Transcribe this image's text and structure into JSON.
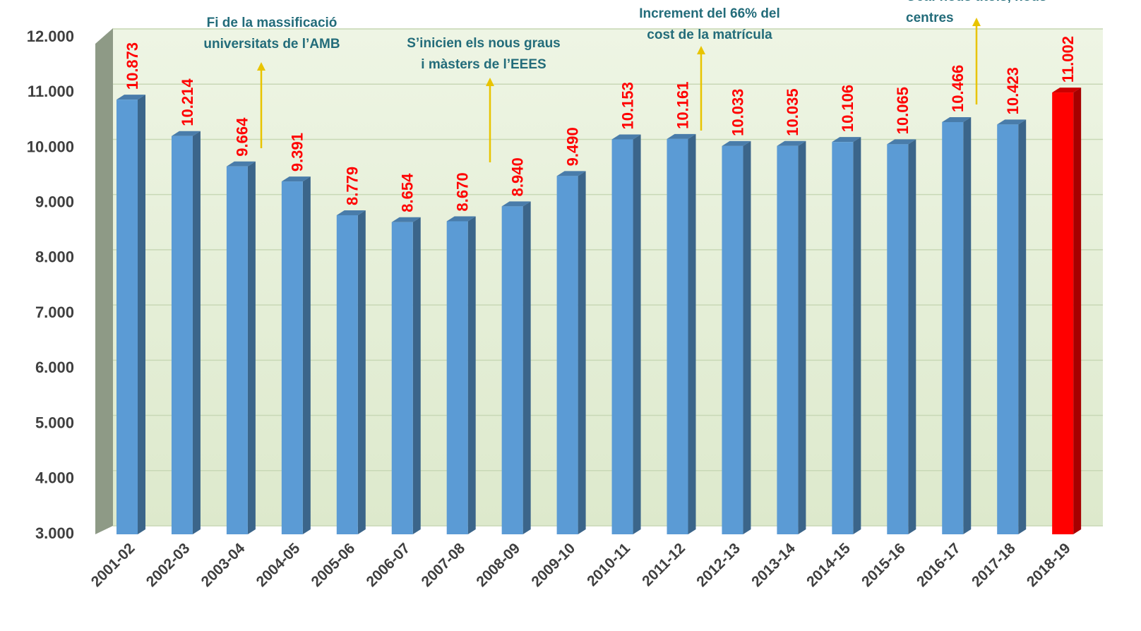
{
  "chart_data": {
    "type": "bar3d",
    "categories": [
      "2001-02",
      "2002-03",
      "2003-04",
      "2004-05",
      "2005-06",
      "2006-07",
      "2007-08",
      "2008-09",
      "2009-10",
      "2010-11",
      "2011-12",
      "2012-13",
      "2013-14",
      "2014-15",
      "2015-16",
      "2016-17",
      "2017-18",
      "2018-19"
    ],
    "values": [
      10873,
      10214,
      9664,
      9391,
      8779,
      8654,
      8670,
      8940,
      9490,
      10153,
      10161,
      10033,
      10035,
      10106,
      10065,
      10466,
      10423,
      11002
    ],
    "value_labels": [
      "10.873",
      "10.214",
      "9.664",
      "9.391",
      "8.779",
      "8.654",
      "8.670",
      "8.940",
      "9.490",
      "10.153",
      "10.161",
      "10.033",
      "10.035",
      "10.106",
      "10.065",
      "10.466",
      "10.423",
      "11.002"
    ],
    "colors": [
      "#5b9bd5",
      "#5b9bd5",
      "#5b9bd5",
      "#5b9bd5",
      "#5b9bd5",
      "#5b9bd5",
      "#5b9bd5",
      "#5b9bd5",
      "#5b9bd5",
      "#5b9bd5",
      "#5b9bd5",
      "#5b9bd5",
      "#5b9bd5",
      "#5b9bd5",
      "#5b9bd5",
      "#5b9bd5",
      "#5b9bd5",
      "#ff0000"
    ],
    "ylim": [
      3000,
      12000
    ],
    "yticks": [
      {
        "value": 3000,
        "label": "3.000"
      },
      {
        "value": 4000,
        "label": "4.000"
      },
      {
        "value": 5000,
        "label": "5.000"
      },
      {
        "value": 6000,
        "label": "6.000"
      },
      {
        "value": 7000,
        "label": "7.000"
      },
      {
        "value": 8000,
        "label": "8.000"
      },
      {
        "value": 9000,
        "label": "9.000"
      },
      {
        "value": 10000,
        "label": "10.000"
      },
      {
        "value": 11000,
        "label": "11.000"
      },
      {
        "value": 12000,
        "label": "12.000"
      }
    ],
    "grid": true,
    "annotations": [
      {
        "lines": [
          "Fi de la massificació",
          "universitats de l’AMB"
        ]
      },
      {
        "lines": [
          "S’inicien els nous graus",
          "i màsters de l’EEES"
        ]
      },
      {
        "lines": [
          "Increment del 66% del",
          "cost de la matrícula"
        ]
      },
      {
        "lines": [
          "Oca: nous títols, nous",
          "centres"
        ]
      }
    ]
  }
}
